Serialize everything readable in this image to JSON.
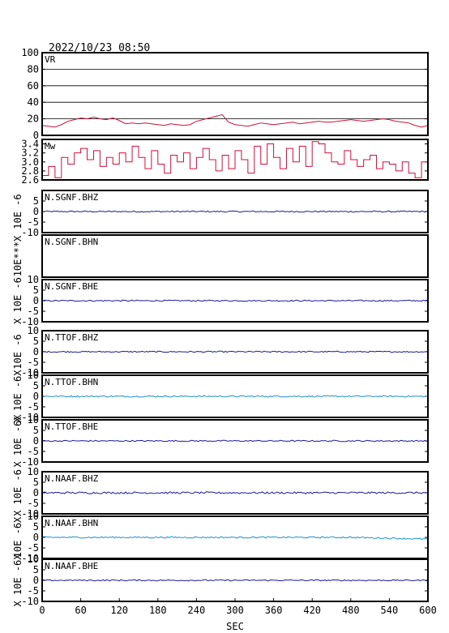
{
  "header": {
    "timestamp": "2022/10/23 08:50"
  },
  "chart_data": {
    "type": "line",
    "xlabel": "SEC",
    "xlim": [
      0,
      600
    ],
    "xticks": [
      0,
      60,
      120,
      180,
      240,
      300,
      360,
      420,
      480,
      540,
      600
    ],
    "panels": [
      {
        "id": "vr",
        "name": "VR",
        "ylabel": "",
        "ylim": [
          0,
          100
        ],
        "yticks": [
          0,
          20,
          40,
          60,
          80,
          100
        ],
        "grid": true,
        "color": "#d0103a",
        "x": [
          0,
          10,
          20,
          30,
          40,
          50,
          60,
          70,
          80,
          90,
          100,
          110,
          120,
          130,
          140,
          150,
          160,
          170,
          180,
          190,
          200,
          210,
          220,
          230,
          240,
          250,
          260,
          270,
          280,
          290,
          300,
          310,
          320,
          330,
          340,
          350,
          360,
          370,
          380,
          390,
          400,
          410,
          420,
          430,
          440,
          450,
          460,
          470,
          480,
          490,
          500,
          510,
          520,
          530,
          540,
          550,
          560,
          570,
          580,
          590,
          600
        ],
        "y": [
          12,
          11,
          10,
          13,
          17,
          19,
          21,
          20,
          22,
          20,
          19,
          21,
          18,
          14,
          15,
          14,
          15,
          14,
          13,
          12,
          14,
          13,
          12,
          13,
          17,
          19,
          21,
          23,
          25,
          16,
          13,
          12,
          11,
          13,
          15,
          14,
          13,
          14,
          15,
          16,
          14,
          15,
          16,
          17,
          16,
          16,
          17,
          18,
          19,
          18,
          17,
          18,
          19,
          20,
          19,
          17,
          16,
          15,
          12,
          10,
          12
        ]
      },
      {
        "id": "mw",
        "name": "Mw",
        "ylabel": "",
        "ylim": [
          2.6,
          3.5
        ],
        "yticks": [
          2.6,
          2.8,
          3.0,
          3.2,
          3.4
        ],
        "yticklabels": [
          "2.6",
          "2.8",
          "3.0",
          "3.2",
          "3.4"
        ],
        "grid": false,
        "color": "#d0103a",
        "x": [
          0,
          10,
          20,
          30,
          40,
          50,
          60,
          70,
          80,
          90,
          100,
          110,
          120,
          130,
          140,
          150,
          160,
          170,
          180,
          190,
          200,
          210,
          220,
          230,
          240,
          250,
          260,
          270,
          280,
          290,
          300,
          310,
          320,
          330,
          340,
          350,
          360,
          370,
          380,
          390,
          400,
          410,
          420,
          430,
          440,
          450,
          460,
          470,
          480,
          490,
          500,
          510,
          520,
          530,
          540,
          550,
          560,
          570,
          580,
          590,
          600
        ],
        "y": [
          2.7,
          2.9,
          2.65,
          3.1,
          2.95,
          3.2,
          3.3,
          3.05,
          3.25,
          2.9,
          3.1,
          2.95,
          3.2,
          3.0,
          3.35,
          3.1,
          2.85,
          3.25,
          2.95,
          2.75,
          3.15,
          3.0,
          3.2,
          2.85,
          3.1,
          3.3,
          3.05,
          2.8,
          3.15,
          2.85,
          3.25,
          3.05,
          2.75,
          3.35,
          2.95,
          3.4,
          3.1,
          2.85,
          3.3,
          3.0,
          3.35,
          2.9,
          3.45,
          3.4,
          3.2,
          3.0,
          2.95,
          3.25,
          3.05,
          2.9,
          3.05,
          3.15,
          2.85,
          3.0,
          2.95,
          2.8,
          3.0,
          2.75,
          2.65,
          3.0,
          2.9
        ]
      },
      {
        "id": "sgnf-bhz",
        "name": "N.SGNF.BHZ",
        "ylabel": "10E -6",
        "ylim": [
          -10,
          10
        ],
        "yticks": [
          -10,
          -5,
          0,
          5
        ],
        "color": "#1a1a9a",
        "amp": 0.3,
        "trend": 0,
        "has_data": true
      },
      {
        "id": "sgnf-bhn",
        "name": "N.SGNF.BHN",
        "ylabel": "10E***X",
        "ylim": [
          -10,
          10
        ],
        "yticks": [],
        "color": "#1a1a9a",
        "amp": 0,
        "trend": 0,
        "has_data": false
      },
      {
        "id": "sgnf-bhe",
        "name": "N.SGNF.BHE",
        "ylabel": "X 10E -6",
        "ylim": [
          -10,
          10
        ],
        "yticks": [
          -10,
          -5,
          0,
          5,
          10
        ],
        "color": "#1a1a9a",
        "amp": 0.3,
        "trend": 0,
        "has_data": true
      },
      {
        "id": "ttof-bhz",
        "name": "N.TTOF.BHZ",
        "ylabel": "10E -6",
        "ylim": [
          -10,
          10
        ],
        "yticks": [
          -10,
          -5,
          0,
          5,
          10
        ],
        "color": "#1a1a9a",
        "amp": 0.3,
        "trend": 0,
        "has_data": true
      },
      {
        "id": "ttof-bhn",
        "name": "N.TTOF.BHN",
        "ylabel": "X 10E -6X",
        "ylim": [
          -10,
          10
        ],
        "yticks": [
          -10,
          -5,
          0,
          5,
          10
        ],
        "color": "#1e90d0",
        "amp": 0.35,
        "trend": 0,
        "has_data": true
      },
      {
        "id": "ttof-bhe",
        "name": "N.TTOF.BHE",
        "ylabel": "X 10E -6X",
        "ylim": [
          -10,
          10
        ],
        "yticks": [
          -10,
          -5,
          0,
          5,
          10
        ],
        "color": "#1a1a9a",
        "amp": 0.3,
        "trend": 0,
        "has_data": true
      },
      {
        "id": "naaf-bhz",
        "name": "N.NAAF.BHZ",
        "ylabel": "X 10E -6",
        "ylim": [
          -10,
          10
        ],
        "yticks": [
          -10,
          -5,
          0,
          5,
          10
        ],
        "color": "#1a1a9a",
        "amp": 0.45,
        "trend": 0,
        "has_data": true
      },
      {
        "id": "naaf-bhn",
        "name": "N.NAAF.BHN",
        "ylabel": "10E -6X",
        "ylim": [
          -10,
          10
        ],
        "yticks": [
          -10,
          -5,
          0,
          5,
          10
        ],
        "color": "#1e90d0",
        "amp": 0.35,
        "trend": -0.8,
        "has_data": true
      },
      {
        "id": "naaf-bhe",
        "name": "N.NAAF.BHE",
        "ylabel": "X 10E -6X",
        "ylim": [
          -10,
          10
        ],
        "yticks": [
          -10,
          -5,
          0,
          5,
          10
        ],
        "color": "#1a1a9a",
        "amp": 0.3,
        "trend": 0,
        "has_data": true
      }
    ]
  }
}
